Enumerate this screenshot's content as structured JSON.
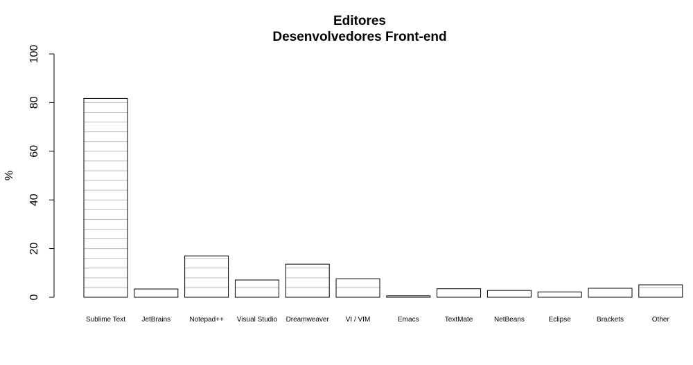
{
  "chart_data": {
    "type": "bar",
    "title": "Editores",
    "subtitle": "Desenvolvedores Front-end",
    "xlabel": "",
    "ylabel": "%",
    "ylim": [
      0,
      100
    ],
    "yticks": [
      0,
      20,
      40,
      60,
      80,
      100
    ],
    "grid": false,
    "bar_fill": "#ffffff",
    "bar_stroke": "#000000",
    "hatch_color": "#bbbbbb",
    "hatch_step": 4,
    "categories": [
      "Sublime Text",
      "JetBrains",
      "Notepad++",
      "Visual Studio",
      "Dreamweaver",
      "VI / VIM",
      "Emacs",
      "TextMate",
      "NetBeans",
      "Eclipse",
      "Brackets",
      "Other"
    ],
    "values": [
      81.7,
      3.4,
      17.0,
      7.1,
      13.6,
      7.6,
      0.6,
      3.5,
      2.8,
      2.2,
      3.7,
      5.1
    ]
  }
}
